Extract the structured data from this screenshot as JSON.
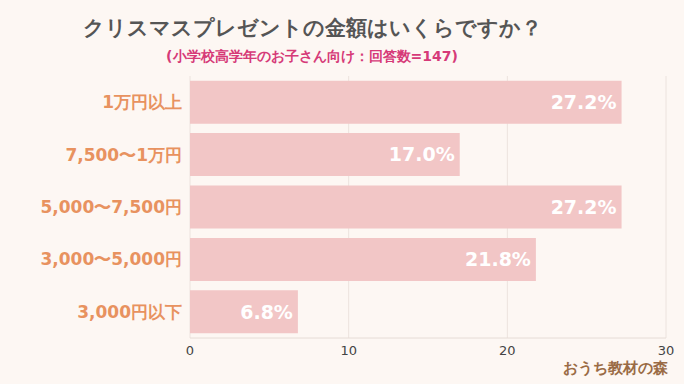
{
  "chart_data": {
    "type": "bar",
    "title": "クリスマスプレゼントの金額はいくらですか？",
    "subtitle": "(小学校高学年のお子さん向け：回答数=147)",
    "orientation": "horizontal",
    "categories": [
      "1万円以上",
      "7,500〜1万円",
      "5,000〜7,500円",
      "3,000〜5,000円",
      "3,000円以下"
    ],
    "values": [
      27.2,
      17.0,
      27.2,
      21.8,
      6.8
    ],
    "value_labels": [
      "27.2%",
      "17.0%",
      "27.2%",
      "21.8%",
      "6.8%"
    ],
    "data_labels": true,
    "color": "#f2c6c6",
    "xlim": [
      0,
      30
    ],
    "xticks": [
      0,
      10,
      20,
      30
    ],
    "grid": true,
    "annotations": [
      "おうち教材の森"
    ]
  }
}
